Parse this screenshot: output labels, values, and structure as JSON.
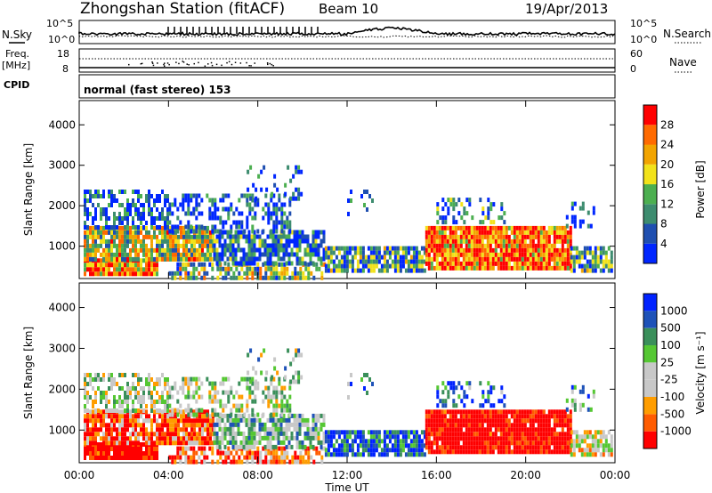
{
  "header": {
    "station": "Zhongshan Station (fitACF)",
    "beam": "Beam 10",
    "date": "19/Apr/2013"
  },
  "panels": {
    "nsky_label": "N.Sky",
    "nsky_ticks": [
      "10^5",
      "10^0"
    ],
    "nsearch_label": "N.Search",
    "nsearch_ticks": [
      "10^5",
      "10^0"
    ],
    "freq_label": "Freq.",
    "freq_unit": "[MHz]",
    "freq_ticks": [
      "18",
      "8"
    ],
    "nave_label": "Nave",
    "nave_ticks": [
      "60",
      "0"
    ],
    "cpid_label": "CPID",
    "cpid_text": "normal (fast stereo) 153"
  },
  "colors": {
    "power": [
      "#0026ff",
      "#1f4fb0",
      "#3d8c6f",
      "#4caf50",
      "#f2e21a",
      "#f2a400",
      "#ff6a00",
      "#ff0000"
    ],
    "velocity": [
      "#ff0000",
      "#ff5c00",
      "#ff9d00",
      "#c8c8c8",
      "#c8c8c8",
      "#55c733",
      "#3a8f5a",
      "#1e52b8",
      "#0022ff"
    ]
  },
  "chart_data": [
    {
      "type": "heatmap",
      "name": "power",
      "ylabel": "Slant Range [km]",
      "xlabel": "",
      "x_ticks": [
        "00:00",
        "04:00",
        "08:00",
        "12:00",
        "16:00",
        "20:00",
        "00:00"
      ],
      "y_ticks": [
        1000,
        2000,
        3000,
        4000
      ],
      "ylim": [
        200,
        4600
      ],
      "xlim_hours": [
        0,
        24
      ],
      "colorbar_label": "Power [dB]",
      "colorbar_ticks": [
        4,
        8,
        12,
        16,
        20,
        24,
        28
      ],
      "colorbar_range": [
        0,
        32
      ]
    },
    {
      "type": "heatmap",
      "name": "velocity",
      "ylabel": "Slant Range [km]",
      "xlabel": "Time UT",
      "x_ticks": [
        "00:00",
        "04:00",
        "08:00",
        "12:00",
        "16:00",
        "20:00",
        "00:00"
      ],
      "y_ticks": [
        1000,
        2000,
        3000,
        4000
      ],
      "ylim": [
        200,
        4600
      ],
      "xlim_hours": [
        0,
        24
      ],
      "colorbar_label": "Velocity [m s⁻¹]",
      "colorbar_ticks": [
        "1000",
        "500",
        "100",
        "25",
        "-25",
        "-100",
        "-500",
        "-1000"
      ]
    }
  ]
}
